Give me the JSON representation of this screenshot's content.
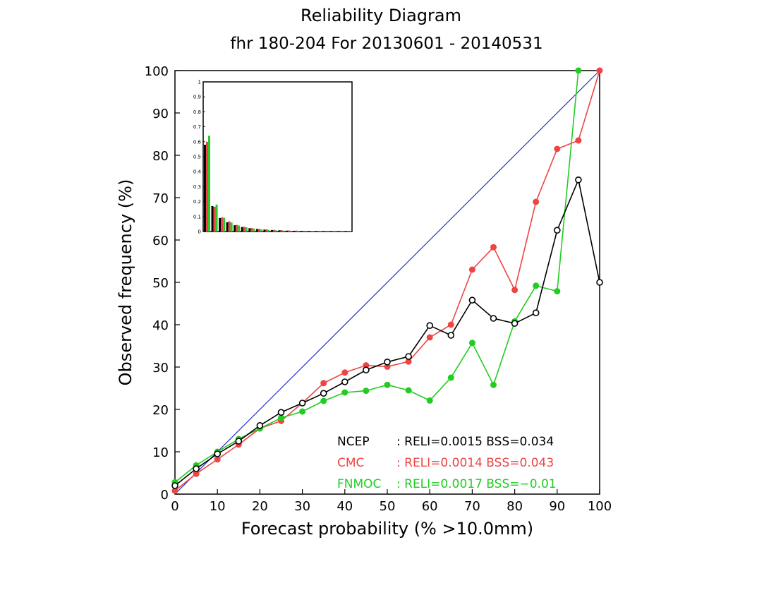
{
  "chart_data": {
    "type": "line",
    "title": "Reliability Diagram",
    "subtitle": "fhr 180-204 For 20130601 - 20140531",
    "xlabel": "Forecast probability (% >10.0mm)",
    "ylabel": "Observed frequency (%)",
    "xlim": [
      0,
      100
    ],
    "ylim": [
      0,
      100
    ],
    "xticks": [
      0,
      10,
      20,
      30,
      40,
      50,
      60,
      70,
      80,
      90,
      100
    ],
    "yticks": [
      0,
      10,
      20,
      30,
      40,
      50,
      60,
      70,
      80,
      90,
      100
    ],
    "grid": false,
    "diagonal": {
      "from": [
        0,
        0
      ],
      "to": [
        100,
        100
      ],
      "color": "#2233bb"
    },
    "x": [
      0,
      5,
      10,
      15,
      20,
      25,
      30,
      35,
      40,
      45,
      50,
      55,
      60,
      65,
      70,
      75,
      80,
      85,
      90,
      95,
      100
    ],
    "series": [
      {
        "name": "NCEP",
        "color": "#000000",
        "marker": "open-circle",
        "values": [
          2,
          6,
          9.5,
          12.5,
          16.2,
          19.3,
          21.5,
          23.8,
          26.5,
          29.3,
          31.2,
          32.5,
          39.8,
          37.5,
          45.8,
          41.5,
          40.3,
          42.8,
          62.3,
          74.2,
          50
        ],
        "stats": ": RELI=0.0015 BSS=0.034"
      },
      {
        "name": "CMC",
        "color": "#ee4444",
        "marker": "filled-circle",
        "values": [
          0.8,
          4.8,
          8.2,
          11.7,
          15.5,
          17.3,
          21.5,
          26.2,
          28.7,
          30.4,
          30.1,
          31.3,
          37,
          40,
          53,
          58.3,
          48.2,
          69,
          81.5,
          83.5,
          100
        ],
        "stats": ": RELI=0.0014 BSS=0.043"
      },
      {
        "name": "FNMOC",
        "color": "#22cc22",
        "marker": "filled-circle",
        "values": [
          2.8,
          6.8,
          10,
          13,
          15.5,
          18,
          19.5,
          22,
          24,
          24.4,
          25.8,
          24.5,
          22.1,
          27.5,
          35.7,
          25.8,
          40.8,
          49.2,
          47.9,
          100,
          null
        ],
        "stats": ": RELI=0.0017 BSS=−0.01"
      }
    ],
    "legend": {
      "placement": "bottom-right"
    },
    "inset": {
      "type": "bar",
      "description_type": "histogram",
      "ylim": [
        0,
        1
      ],
      "yticks": [
        "0",
        "0.1",
        "0.2",
        "0.3",
        "0.4",
        "0.5",
        "0.6",
        "0.7",
        "0.8",
        "0.9",
        "1"
      ],
      "placement": "top-left",
      "series": [
        {
          "name": "NCEP",
          "color": "#000000",
          "values": [
            0.58,
            0.17,
            0.09,
            0.062,
            0.042,
            0.03,
            0.022,
            0.017,
            0.013,
            0.01,
            0.008,
            0.006,
            0.005,
            0.004,
            0.003,
            0.003,
            0.002,
            0.002,
            0.002,
            0.001
          ]
        },
        {
          "name": "CMC",
          "color": "#ee4444",
          "values": [
            0.6,
            0.165,
            0.095,
            0.068,
            0.045,
            0.032,
            0.024,
            0.018,
            0.014,
            0.011,
            0.009,
            0.007,
            0.006,
            0.005,
            0.004,
            0.003,
            0.003,
            0.002,
            0.002,
            0.001
          ]
        },
        {
          "name": "FNMOC",
          "color": "#22cc22",
          "values": [
            0.64,
            0.18,
            0.092,
            0.06,
            0.04,
            0.028,
            0.02,
            0.015,
            0.011,
            0.008,
            0.006,
            0.005,
            0.004,
            0.003,
            0.002,
            0.002,
            0.001,
            0.001,
            0.001,
            0.001
          ]
        }
      ]
    }
  }
}
